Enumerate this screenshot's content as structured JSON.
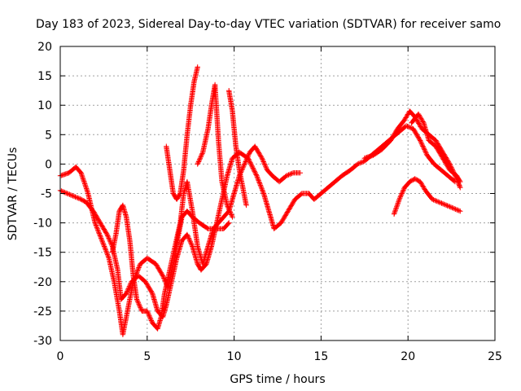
{
  "chart_data": {
    "type": "scatter",
    "title": "Day 183 of 2023, Sidereal Day-to-day VTEC variation (SDTVAR) for receiver samo",
    "xlabel": "GPS time / hours",
    "ylabel": "SDTVAR / TECUs",
    "xlim": [
      0,
      25
    ],
    "ylim": [
      -30,
      20
    ],
    "xticks": [
      0,
      5,
      10,
      15,
      20,
      25
    ],
    "yticks": [
      -30,
      -25,
      -20,
      -15,
      -10,
      -5,
      0,
      5,
      10,
      15,
      20
    ],
    "grid": true,
    "marker": "plus",
    "series_color": "#ff0000",
    "series": [
      {
        "name": "trace-1",
        "points": [
          [
            0,
            -2
          ],
          [
            0.5,
            -1.5
          ],
          [
            0.9,
            -0.5
          ],
          [
            1.2,
            -1.5
          ],
          [
            1.6,
            -5
          ],
          [
            2.0,
            -10
          ],
          [
            2.4,
            -13
          ],
          [
            2.8,
            -16
          ],
          [
            3.1,
            -20
          ],
          [
            3.4,
            -25
          ],
          [
            3.6,
            -29
          ],
          [
            3.8,
            -26
          ],
          [
            4.2,
            -20
          ],
          [
            4.6,
            -17
          ],
          [
            5.0,
            -16
          ],
          [
            5.5,
            -17
          ],
          [
            5.9,
            -19
          ],
          [
            6.2,
            -21
          ],
          [
            6.5,
            -17
          ],
          [
            6.8,
            -12
          ],
          [
            7.0,
            -9
          ],
          [
            7.3,
            -8
          ],
          [
            7.6,
            -9
          ],
          [
            8.0,
            -10
          ],
          [
            8.5,
            -11
          ],
          [
            9.0,
            -11
          ],
          [
            9.4,
            -11
          ],
          [
            9.7,
            -10
          ]
        ]
      },
      {
        "name": "trace-2",
        "points": [
          [
            0,
            -4.5
          ],
          [
            0.4,
            -5
          ],
          [
            0.8,
            -5.5
          ],
          [
            1.2,
            -6
          ],
          [
            1.5,
            -6.5
          ],
          [
            1.9,
            -8
          ],
          [
            2.3,
            -10
          ],
          [
            2.7,
            -12
          ],
          [
            3.0,
            -14
          ],
          [
            3.3,
            -18
          ],
          [
            3.5,
            -23
          ],
          [
            3.8,
            -22
          ],
          [
            4.1,
            -20
          ],
          [
            4.5,
            -19
          ],
          [
            4.9,
            -20
          ],
          [
            5.3,
            -22
          ],
          [
            5.6,
            -25
          ],
          [
            5.9,
            -26
          ],
          [
            6.1,
            -24
          ],
          [
            6.4,
            -20
          ],
          [
            6.7,
            -16
          ],
          [
            7.0,
            -13
          ],
          [
            7.3,
            -12
          ],
          [
            7.6,
            -14
          ],
          [
            7.9,
            -17
          ],
          [
            8.1,
            -18
          ],
          [
            8.4,
            -17
          ],
          [
            8.7,
            -14
          ],
          [
            9.0,
            -10
          ],
          [
            9.3,
            -6
          ],
          [
            9.6,
            -2
          ],
          [
            9.9,
            1
          ],
          [
            10.3,
            2
          ],
          [
            10.8,
            1
          ],
          [
            11.3,
            -2
          ],
          [
            11.7,
            -5
          ],
          [
            12.0,
            -8
          ],
          [
            12.3,
            -11
          ],
          [
            12.7,
            -10
          ],
          [
            13.1,
            -8
          ],
          [
            13.5,
            -6
          ],
          [
            13.9,
            -5
          ],
          [
            14.3,
            -5
          ],
          [
            14.6,
            -6
          ],
          [
            15.0,
            -5
          ],
          [
            15.4,
            -4
          ],
          [
            15.8,
            -3
          ],
          [
            16.2,
            -2
          ],
          [
            16.7,
            -1
          ],
          [
            17.1,
            0
          ],
          [
            17.5,
            0.5
          ],
          [
            17.9,
            1.5
          ],
          [
            18.3,
            2.5
          ],
          [
            18.7,
            3.5
          ],
          [
            19.1,
            4.5
          ],
          [
            19.5,
            5.5
          ],
          [
            19.9,
            6.5
          ],
          [
            20.3,
            6
          ],
          [
            20.7,
            4
          ],
          [
            21.1,
            1.5
          ],
          [
            21.5,
            0
          ],
          [
            21.9,
            -1
          ],
          [
            22.3,
            -2
          ],
          [
            22.7,
            -3
          ]
        ]
      },
      {
        "name": "trace-3",
        "points": [
          [
            3.0,
            -15
          ],
          [
            3.2,
            -12
          ],
          [
            3.4,
            -8
          ],
          [
            3.6,
            -7
          ],
          [
            3.8,
            -9
          ],
          [
            4.0,
            -13
          ],
          [
            4.2,
            -19
          ],
          [
            4.4,
            -23
          ],
          [
            4.7,
            -25
          ],
          [
            5.0,
            -25
          ],
          [
            5.3,
            -27
          ],
          [
            5.6,
            -28
          ],
          [
            5.8,
            -26
          ],
          [
            6.0,
            -22
          ],
          [
            6.3,
            -18
          ],
          [
            6.6,
            -14
          ],
          [
            6.9,
            -10
          ],
          [
            7.1,
            -5
          ],
          [
            7.3,
            -3
          ],
          [
            7.6,
            -8
          ],
          [
            7.9,
            -14
          ],
          [
            8.2,
            -17
          ],
          [
            8.5,
            -14
          ],
          [
            8.8,
            -11
          ],
          [
            9.1,
            -10
          ],
          [
            9.4,
            -9
          ],
          [
            9.7,
            -8
          ],
          [
            10.0,
            -5
          ],
          [
            10.3,
            -2
          ],
          [
            10.6,
            0
          ],
          [
            10.9,
            2
          ],
          [
            11.2,
            3
          ],
          [
            11.6,
            1
          ],
          [
            11.9,
            -1
          ],
          [
            12.2,
            -2
          ],
          [
            12.6,
            -3
          ],
          [
            13.0,
            -2
          ],
          [
            13.4,
            -1.5
          ],
          [
            13.8,
            -1.5
          ]
        ]
      },
      {
        "name": "trace-4",
        "points": [
          [
            6.1,
            3
          ],
          [
            6.3,
            -1
          ],
          [
            6.5,
            -5
          ],
          [
            6.7,
            -6
          ],
          [
            6.9,
            -5
          ],
          [
            7.1,
            -1
          ],
          [
            7.3,
            5
          ],
          [
            7.5,
            10
          ],
          [
            7.7,
            14
          ],
          [
            7.9,
            16.5
          ]
        ]
      },
      {
        "name": "trace-5",
        "points": [
          [
            7.9,
            0
          ],
          [
            8.2,
            2
          ],
          [
            8.5,
            6
          ],
          [
            8.7,
            10
          ],
          [
            8.9,
            13.5
          ],
          [
            9.1,
            4
          ],
          [
            9.3,
            -3
          ],
          [
            9.6,
            -7
          ],
          [
            9.9,
            -9
          ]
        ]
      },
      {
        "name": "trace-6",
        "points": [
          [
            9.7,
            12.5
          ],
          [
            9.9,
            9
          ],
          [
            10.1,
            3
          ],
          [
            10.3,
            -1
          ],
          [
            10.5,
            -4
          ],
          [
            10.7,
            -7
          ]
        ]
      },
      {
        "name": "trace-7",
        "points": [
          [
            19.2,
            -8.5
          ],
          [
            19.5,
            -6
          ],
          [
            19.8,
            -4
          ],
          [
            20.1,
            -3
          ],
          [
            20.4,
            -2.5
          ],
          [
            20.7,
            -3
          ],
          [
            21.0,
            -4.5
          ],
          [
            21.4,
            -6
          ],
          [
            21.8,
            -6.5
          ],
          [
            22.2,
            -7
          ],
          [
            22.6,
            -7.5
          ],
          [
            23.0,
            -8
          ]
        ]
      },
      {
        "name": "trace-8",
        "points": [
          [
            17.5,
            1
          ],
          [
            18.0,
            1.5
          ],
          [
            18.5,
            2.5
          ],
          [
            19.0,
            4
          ],
          [
            19.4,
            6
          ],
          [
            19.8,
            7.5
          ],
          [
            20.1,
            9
          ],
          [
            20.4,
            8
          ],
          [
            20.8,
            6
          ],
          [
            21.2,
            5
          ],
          [
            21.6,
            4
          ],
          [
            22.0,
            2
          ],
          [
            22.4,
            0
          ],
          [
            22.8,
            -2.5
          ],
          [
            23.0,
            -4
          ]
        ]
      },
      {
        "name": "trace-9",
        "points": [
          [
            20.2,
            7
          ],
          [
            20.6,
            8.5
          ],
          [
            20.9,
            7
          ],
          [
            21.2,
            4
          ],
          [
            21.6,
            3
          ],
          [
            22.0,
            1
          ],
          [
            22.4,
            -1
          ],
          [
            22.8,
            -2
          ],
          [
            23.0,
            -3
          ]
        ]
      }
    ]
  }
}
